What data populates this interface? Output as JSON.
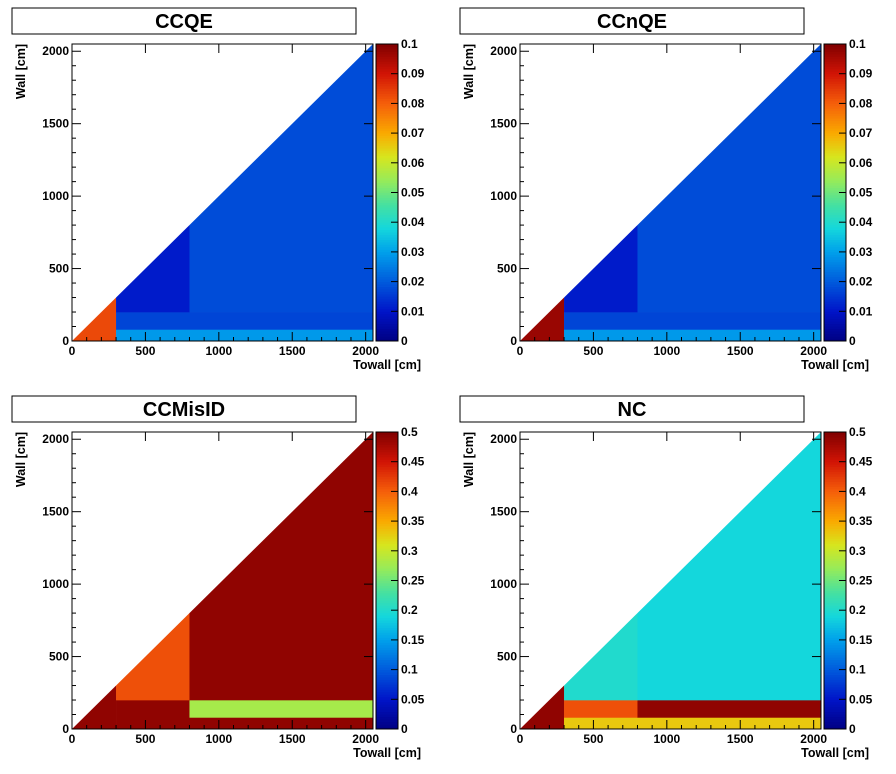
{
  "chart_data": [
    {
      "type": "heatmap",
      "title": "CCQE",
      "xlabel": "Towall [cm]",
      "ylabel": "Wall [cm]",
      "xlim": [
        0,
        2050
      ],
      "ylim": [
        0,
        2050
      ],
      "x_ticks": [
        0,
        500,
        1000,
        1500,
        2000
      ],
      "y_ticks": [
        0,
        500,
        1000,
        1500,
        2000
      ],
      "color_scale": {
        "min": 0,
        "max": 0.1,
        "ticks": [
          0,
          0.01,
          0.02,
          0.03,
          0.04,
          0.05,
          0.06,
          0.07,
          0.08,
          0.09,
          0.1
        ]
      },
      "region_constraint": "wall <= towall",
      "cells": [
        {
          "x": [
            0,
            300
          ],
          "y": [
            0,
            300
          ],
          "value": 0.083
        },
        {
          "x": [
            300,
            2050
          ],
          "y": [
            0,
            80
          ],
          "value": 0.029
        },
        {
          "x": [
            300,
            2050
          ],
          "y": [
            80,
            200
          ],
          "value": 0.017
        },
        {
          "x": [
            300,
            800
          ],
          "y": [
            200,
            800
          ],
          "value": 0.011
        },
        {
          "x": [
            800,
            2050
          ],
          "y": [
            200,
            2050
          ],
          "value": 0.018
        }
      ]
    },
    {
      "type": "heatmap",
      "title": "CCnQE",
      "xlabel": "Towall [cm]",
      "ylabel": "Wall [cm]",
      "xlim": [
        0,
        2050
      ],
      "ylim": [
        0,
        2050
      ],
      "x_ticks": [
        0,
        500,
        1000,
        1500,
        2000
      ],
      "y_ticks": [
        0,
        500,
        1000,
        1500,
        2000
      ],
      "color_scale": {
        "min": 0,
        "max": 0.1,
        "ticks": [
          0,
          0.01,
          0.02,
          0.03,
          0.04,
          0.05,
          0.06,
          0.07,
          0.08,
          0.09,
          0.1
        ]
      },
      "region_constraint": "wall <= towall",
      "cells": [
        {
          "x": [
            0,
            300
          ],
          "y": [
            0,
            300
          ],
          "value": 0.097
        },
        {
          "x": [
            300,
            2050
          ],
          "y": [
            0,
            80
          ],
          "value": 0.029
        },
        {
          "x": [
            300,
            2050
          ],
          "y": [
            80,
            200
          ],
          "value": 0.017
        },
        {
          "x": [
            300,
            800
          ],
          "y": [
            200,
            800
          ],
          "value": 0.011
        },
        {
          "x": [
            800,
            2050
          ],
          "y": [
            200,
            2050
          ],
          "value": 0.018
        }
      ]
    },
    {
      "type": "heatmap",
      "title": "CCMisID",
      "xlabel": "Towall [cm]",
      "ylabel": "Wall [cm]",
      "xlim": [
        0,
        2050
      ],
      "ylim": [
        0,
        2050
      ],
      "x_ticks": [
        0,
        500,
        1000,
        1500,
        2000
      ],
      "y_ticks": [
        0,
        500,
        1000,
        1500,
        2000
      ],
      "color_scale": {
        "min": 0,
        "max": 0.5,
        "ticks": [
          0,
          0.05,
          0.1,
          0.15,
          0.2,
          0.25,
          0.3,
          0.35,
          0.4,
          0.45,
          0.5
        ]
      },
      "region_constraint": "wall <= towall",
      "cells": [
        {
          "x": [
            0,
            300
          ],
          "y": [
            0,
            300
          ],
          "value": 0.49
        },
        {
          "x": [
            300,
            800
          ],
          "y": [
            0,
            200
          ],
          "value": 0.49
        },
        {
          "x": [
            800,
            2050
          ],
          "y": [
            0,
            80
          ],
          "value": 0.49
        },
        {
          "x": [
            800,
            2050
          ],
          "y": [
            80,
            200
          ],
          "value": 0.28
        },
        {
          "x": [
            300,
            800
          ],
          "y": [
            200,
            800
          ],
          "value": 0.41
        },
        {
          "x": [
            800,
            2050
          ],
          "y": [
            200,
            2050
          ],
          "value": 0.49
        }
      ]
    },
    {
      "type": "heatmap",
      "title": "NC",
      "xlabel": "Towall [cm]",
      "ylabel": "Wall [cm]",
      "xlim": [
        0,
        2050
      ],
      "ylim": [
        0,
        2050
      ],
      "x_ticks": [
        0,
        500,
        1000,
        1500,
        2000
      ],
      "y_ticks": [
        0,
        500,
        1000,
        1500,
        2000
      ],
      "color_scale": {
        "min": 0,
        "max": 0.5,
        "ticks": [
          0,
          0.05,
          0.1,
          0.15,
          0.2,
          0.25,
          0.3,
          0.35,
          0.4,
          0.45,
          0.5
        ]
      },
      "region_constraint": "wall <= towall",
      "cells": [
        {
          "x": [
            0,
            300
          ],
          "y": [
            0,
            300
          ],
          "value": 0.49
        },
        {
          "x": [
            300,
            2050
          ],
          "y": [
            0,
            80
          ],
          "value": 0.33
        },
        {
          "x": [
            300,
            800
          ],
          "y": [
            80,
            200
          ],
          "value": 0.41
        },
        {
          "x": [
            800,
            2050
          ],
          "y": [
            80,
            200
          ],
          "value": 0.49
        },
        {
          "x": [
            300,
            800
          ],
          "y": [
            200,
            800
          ],
          "value": 0.2
        },
        {
          "x": [
            800,
            2050
          ],
          "y": [
            200,
            2050
          ],
          "value": 0.19
        }
      ]
    }
  ]
}
